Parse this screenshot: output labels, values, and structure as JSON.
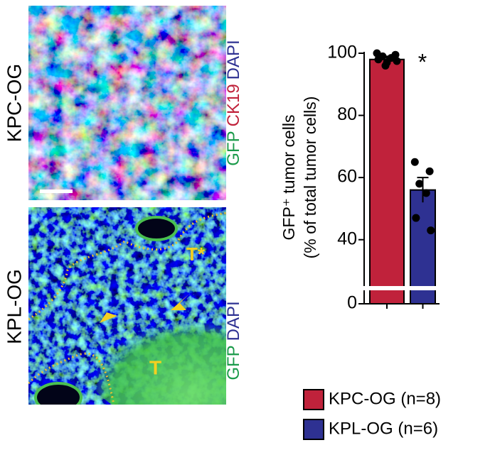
{
  "panels": [
    {
      "label": "KPC-OG",
      "channels": [
        {
          "text": "GFP",
          "color": "#1a9a4a"
        },
        {
          "text": "CK19",
          "color": "#c0223b"
        },
        {
          "text": "DAPI",
          "color": "#2e3192"
        }
      ],
      "annotations": []
    },
    {
      "label": "KPL-OG",
      "channels": [
        {
          "text": "GFP",
          "color": "#1a9a4a"
        },
        {
          "text": "DAPI",
          "color": "#2e3192"
        }
      ],
      "annotations": [
        "T*",
        "T"
      ]
    }
  ],
  "chart_data": {
    "type": "bar",
    "ylabel": [
      "GFP⁺ tumor cells",
      "(% of total tumor cells)"
    ],
    "categories": [
      "KPC-OG (n=8)",
      "KPL-OG (n=6)"
    ],
    "series": [
      {
        "name": "KPC-OG (n=8)",
        "color": "#c0223b",
        "value": 98,
        "error": 1,
        "points": [
          100,
          99.5,
          99,
          98.5,
          98,
          97.5,
          97,
          96
        ]
      },
      {
        "name": "KPL-OG (n=6)",
        "color": "#2e3192",
        "value": 56,
        "error": 4,
        "points": [
          65,
          62,
          58,
          55,
          47,
          43
        ]
      }
    ],
    "ylim": [
      0,
      100
    ],
    "axis_break": [
      3,
      26
    ],
    "yticks": [
      0,
      40,
      60,
      80,
      100
    ],
    "significance": "*"
  }
}
